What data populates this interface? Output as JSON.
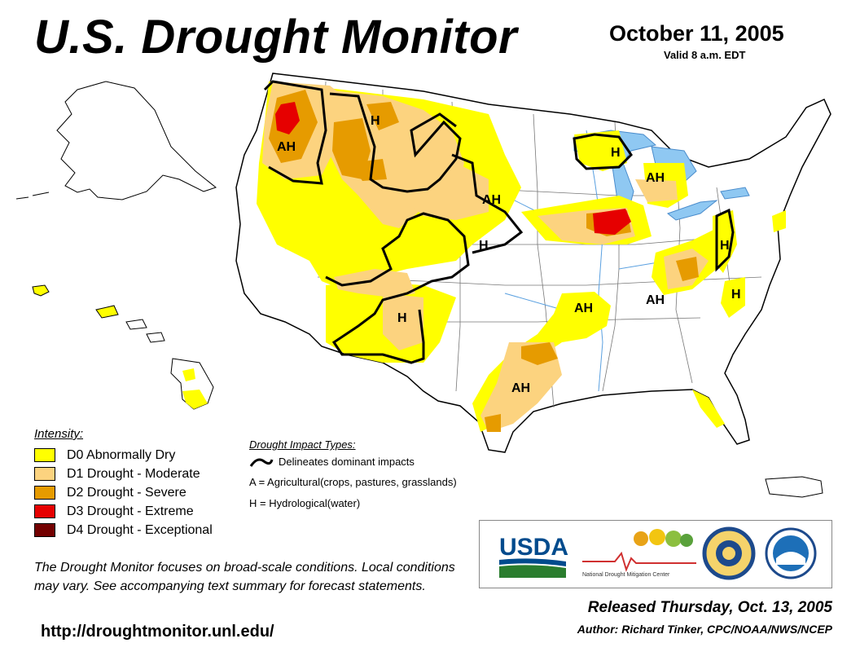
{
  "header": {
    "title": "U.S. Drought Monitor",
    "date": "October 11, 2005",
    "valid": "Valid 8 a.m. EDT"
  },
  "colors": {
    "d0": "#ffff00",
    "d1": "#fcd37f",
    "d2": "#e69b00",
    "d3": "#e60000",
    "d4": "#730000",
    "water": "#8fc8f2"
  },
  "legend": {
    "title": "Intensity:",
    "items": [
      {
        "code": "D0",
        "label": "D0 Abnormally Dry",
        "color": "#ffff00"
      },
      {
        "code": "D1",
        "label": "D1 Drought - Moderate",
        "color": "#fcd37f"
      },
      {
        "code": "D2",
        "label": "D2 Drought - Severe",
        "color": "#e69b00"
      },
      {
        "code": "D3",
        "label": "D3 Drought - Extreme",
        "color": "#e60000"
      },
      {
        "code": "D4",
        "label": "D4 Drought - Exceptional",
        "color": "#730000"
      }
    ]
  },
  "impacts": {
    "title": "Drought Impact Types:",
    "delineates": "Delineates dominant impacts",
    "agricultural": "A = Agricultural(crops, pastures, grasslands)",
    "hydrological": "H = Hydrological(water)"
  },
  "map_labels": {
    "ah": "AH",
    "h": "H"
  },
  "logos": {
    "usda": "USDA",
    "ndmc": "National Drought Mitigation Center"
  },
  "note": "The Drought Monitor focuses on broad-scale conditions. Local conditions may vary. See accompanying text summary for forecast statements.",
  "url": "http://droughtmonitor.unl.edu/",
  "released": "Released Thursday, Oct. 13, 2005",
  "author": "Author: Richard Tinker, CPC/NOAA/NWS/NCEP"
}
